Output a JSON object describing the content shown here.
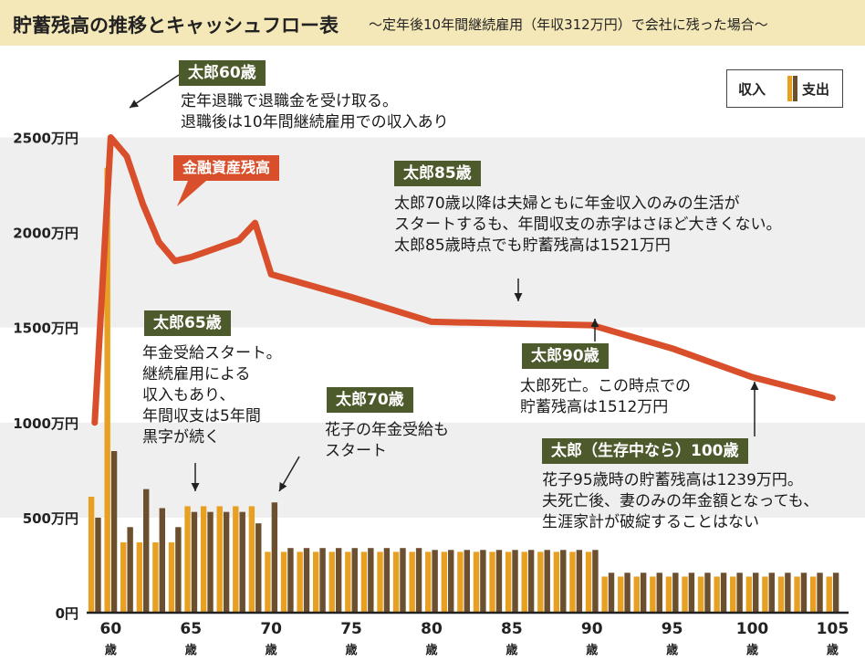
{
  "title": "貯蓄残高の推移とキャッシュフロー表",
  "subtitle": "〜定年後10年間継続雇用（年収312万円）で会社に残った場合〜",
  "legend": {
    "income": "収入",
    "expense": "支出"
  },
  "colors": {
    "income": "#e8a022",
    "expense": "#6b4f2f",
    "balance": "#d94f2b",
    "callout": "#4d5a2c",
    "title_bg": "#f4e7b8",
    "band": "#efefef"
  },
  "series_tag": "金融資産残高",
  "callouts": [
    {
      "title": "太郎60歳",
      "lines": [
        "定年退職で退職金を受け取る。",
        "退職後は10年間継続雇用での収入あり"
      ]
    },
    {
      "title": "太郎85歳",
      "lines": [
        "太郎70歳以降は夫婦ともに年金収入のみの生活が",
        "スタートするも、年間収支の赤字はさほど大きくない。",
        "太郎85歳時点でも貯蓄残高は1521万円"
      ]
    },
    {
      "title": "太郎65歳",
      "lines": [
        "年金受給スタート。",
        "継続雇用による",
        "収入もあり、",
        "年間収支は5年間",
        "黒字が続く"
      ]
    },
    {
      "title": "太郎70歳",
      "lines": [
        "花子の年金受給も",
        "スタート"
      ]
    },
    {
      "title": "太郎90歳",
      "lines": [
        "太郎死亡。この時点での",
        "貯蓄残高は1512万円"
      ]
    },
    {
      "title": "太郎（生存中なら）100歳",
      "lines": [
        "花子95歳時の貯蓄残高は1239万円。",
        "夫死亡後、妻のみの年金額となっても、",
        "生涯家計が破綻することはない"
      ]
    }
  ],
  "chart_data": {
    "type": "bar",
    "x": [
      59,
      60,
      61,
      62,
      63,
      64,
      65,
      66,
      67,
      68,
      69,
      70,
      71,
      72,
      73,
      74,
      75,
      76,
      77,
      78,
      79,
      80,
      81,
      82,
      83,
      84,
      85,
      86,
      87,
      88,
      89,
      90,
      91,
      92,
      93,
      94,
      95,
      96,
      97,
      98,
      99,
      100,
      101,
      102,
      103,
      104,
      105
    ],
    "series": [
      {
        "name": "収入",
        "type": "bar",
        "values": [
          610,
          2340,
          370,
          370,
          370,
          370,
          560,
          560,
          560,
          560,
          560,
          320,
          320,
          320,
          320,
          320,
          320,
          320,
          320,
          320,
          320,
          320,
          320,
          320,
          320,
          320,
          320,
          320,
          320,
          320,
          320,
          320,
          190,
          190,
          190,
          190,
          190,
          190,
          190,
          190,
          190,
          190,
          190,
          190,
          190,
          190,
          190
        ]
      },
      {
        "name": "支出",
        "type": "bar",
        "values": [
          500,
          850,
          450,
          650,
          550,
          450,
          530,
          530,
          530,
          530,
          470,
          580,
          340,
          340,
          340,
          340,
          340,
          340,
          340,
          340,
          340,
          330,
          330,
          330,
          330,
          330,
          330,
          330,
          330,
          330,
          330,
          330,
          210,
          210,
          210,
          210,
          210,
          210,
          210,
          210,
          210,
          210,
          210,
          210,
          210,
          210,
          210
        ]
      },
      {
        "name": "金融資産残高",
        "type": "line",
        "x": [
          59,
          60,
          61,
          62,
          63,
          64,
          65,
          66,
          67,
          68,
          69,
          70,
          75,
          80,
          85,
          90,
          95,
          100,
          105
        ],
        "values": [
          1000,
          2500,
          2400,
          2150,
          1950,
          1850,
          1870,
          1900,
          1930,
          1960,
          2050,
          1780,
          1660,
          1530,
          1521,
          1512,
          1390,
          1239,
          1130
        ]
      }
    ],
    "y_ticks": [
      "0円",
      "500万円",
      "1000万円",
      "1500万円",
      "2000万円",
      "2500万円"
    ],
    "x_ticks": [
      "60",
      "65",
      "70",
      "75",
      "80",
      "85",
      "90",
      "95",
      "100",
      "105"
    ],
    "x_unit": "歳",
    "ylim": [
      0,
      2800
    ],
    "xlim": [
      58.5,
      106
    ]
  }
}
